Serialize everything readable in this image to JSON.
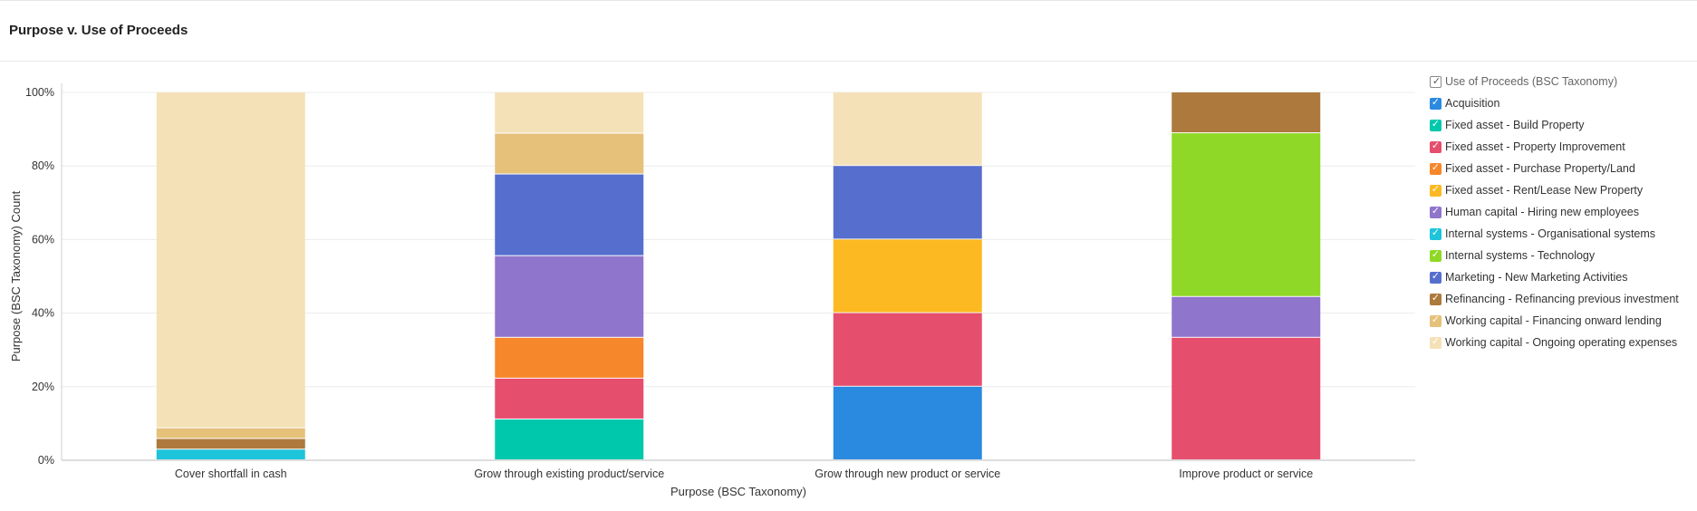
{
  "title": "Purpose v. Use of Proceeds",
  "colors": {
    "Acquisition": "#2a8ae0",
    "Fixed asset - Build Property": "#00c8ad",
    "Fixed asset - Property Improvement": "#e64e6e",
    "Fixed asset - Purchase Property/Land": "#f7872b",
    "Fixed asset - Rent/Lease New Property": "#fdb921",
    "Human capital - Hiring new employees": "#9075cc",
    "Internal systems - Organisational systems": "#1ec4da",
    "Internal systems - Technology": "#8fd827",
    "Marketing - New Marketing Activities": "#566fce",
    "Refinancing - Refinancing previous investment": "#ad793c",
    "Working capital - Financing onward lending": "#e5c17a",
    "Working capital - Ongoing operating expenses": "#f5e1b8"
  },
  "legend": {
    "title": "Use of Proceeds (BSC Taxonomy)",
    "check_symbol": "✓"
  },
  "chart_data": {
    "type": "bar",
    "stacked": true,
    "normalized_percent": true,
    "xlabel": "Purpose (BSC Taxonomy)",
    "ylabel": "Purpose (BSC Taxonomy) Count",
    "ylim": [
      0,
      100
    ],
    "yticks": [
      "0%",
      "20%",
      "40%",
      "60%",
      "80%",
      "100%"
    ],
    "grid": true,
    "legend_position": "right",
    "categories": [
      "Cover shortfall in cash",
      "Grow through existing product/service",
      "Grow through new product or service",
      "Improve product or service"
    ],
    "series": [
      {
        "name": "Acquisition",
        "values": [
          0,
          0,
          20,
          0
        ]
      },
      {
        "name": "Fixed asset - Build Property",
        "values": [
          0,
          11.1,
          0,
          0
        ]
      },
      {
        "name": "Fixed asset - Property Improvement",
        "values": [
          0,
          11.1,
          20,
          33.3
        ]
      },
      {
        "name": "Fixed asset - Purchase Property/Land",
        "values": [
          0,
          11.1,
          0,
          0
        ]
      },
      {
        "name": "Fixed asset - Rent/Lease New Property",
        "values": [
          0,
          0,
          20,
          0
        ]
      },
      {
        "name": "Human capital - Hiring new employees",
        "values": [
          0,
          22.2,
          0,
          11.1
        ]
      },
      {
        "name": "Internal systems - Organisational systems",
        "values": [
          2.9,
          0,
          0,
          0
        ]
      },
      {
        "name": "Internal systems - Technology",
        "values": [
          0,
          0,
          0,
          44.5
        ]
      },
      {
        "name": "Marketing - New Marketing Activities",
        "values": [
          0,
          22.2,
          20,
          0
        ]
      },
      {
        "name": "Refinancing - Refinancing previous investment",
        "values": [
          2.9,
          0,
          0,
          11.1
        ]
      },
      {
        "name": "Working capital - Financing onward lending",
        "values": [
          2.9,
          11.1,
          0,
          0
        ]
      },
      {
        "name": "Working capital - Ongoing operating expenses",
        "values": [
          91.3,
          11.2,
          20,
          0
        ]
      }
    ]
  }
}
